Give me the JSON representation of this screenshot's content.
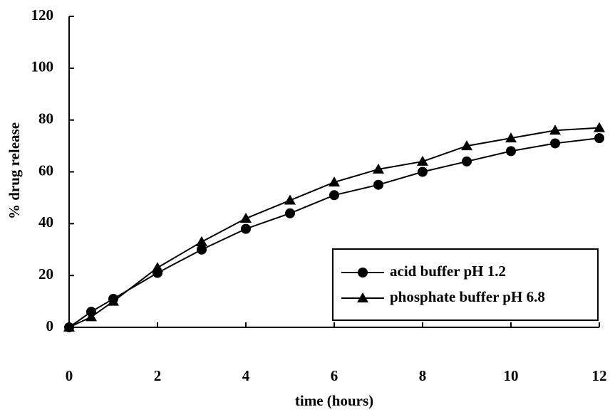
{
  "chart_data": {
    "type": "line",
    "x_label": "time (hours)",
    "y_label": "% drug release",
    "x": [
      0,
      0.5,
      1,
      2,
      3,
      4,
      5,
      6,
      7,
      8,
      9,
      10,
      11,
      12
    ],
    "series": [
      {
        "name": "acid buffer pH 1.2",
        "color": "#000000",
        "marker": "circle",
        "values": [
          0,
          6,
          11,
          21,
          30,
          38,
          44,
          51,
          55,
          60,
          64,
          68,
          71,
          73
        ]
      },
      {
        "name": "phosphate buffer pH 6.8",
        "color": "#000000",
        "marker": "triangle",
        "values": [
          0,
          4,
          10,
          23,
          33,
          42,
          49,
          56,
          61,
          64,
          70,
          73,
          76,
          77
        ]
      }
    ],
    "xlim": [
      0,
      12
    ],
    "xticks": [
      0,
      2,
      4,
      6,
      8,
      10,
      12
    ],
    "ylim": [
      0,
      120
    ],
    "yticks": [
      0,
      20,
      40,
      60,
      80,
      100,
      120
    ],
    "grid": false,
    "legend": "lower right"
  }
}
